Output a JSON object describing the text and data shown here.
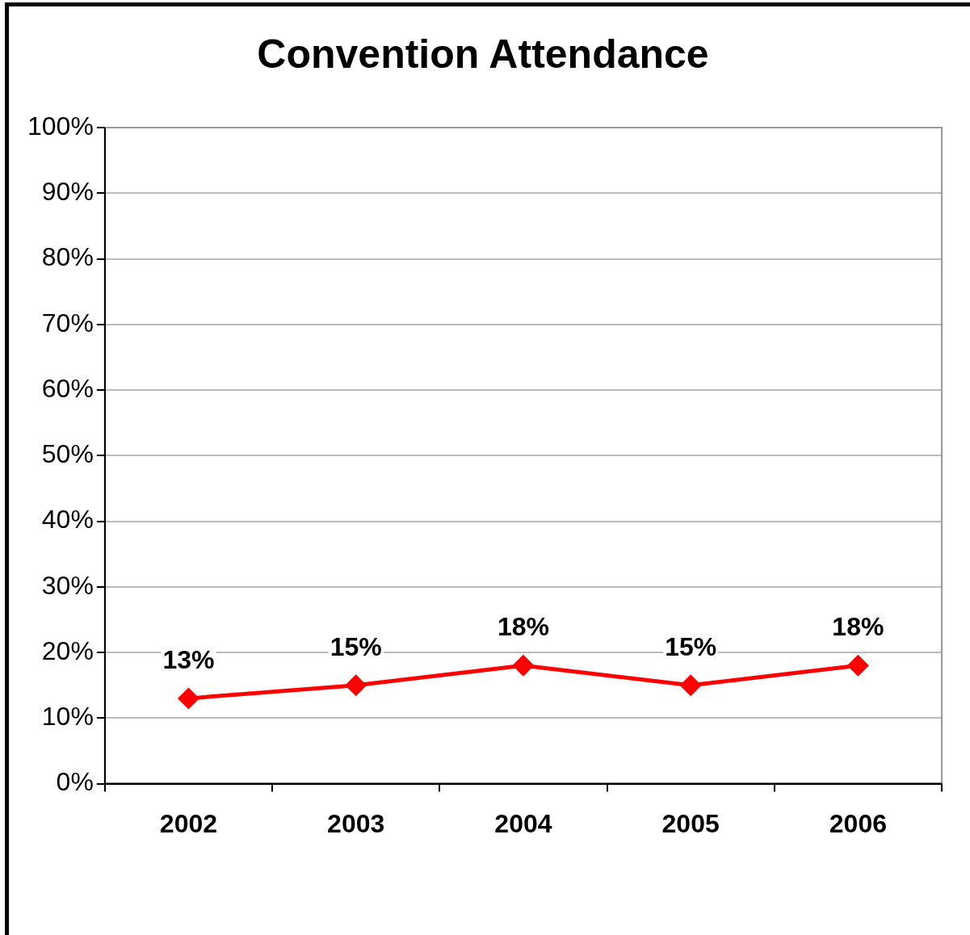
{
  "chart_data": {
    "type": "line",
    "title": "Convention Attendance",
    "categories": [
      "2002",
      "2003",
      "2004",
      "2005",
      "2006"
    ],
    "series": [
      {
        "color": "#ff0000",
        "values": [
          13,
          15,
          18,
          15,
          18
        ],
        "value_labels": [
          "13%",
          "15%",
          "18%",
          "15%",
          "18%"
        ]
      }
    ],
    "ylim": [
      0,
      100
    ],
    "yticks": [
      {
        "value": 0,
        "label": "0%"
      },
      {
        "value": 10,
        "label": "10%"
      },
      {
        "value": 20,
        "label": "20%"
      },
      {
        "value": 30,
        "label": "30%"
      },
      {
        "value": 40,
        "label": "40%"
      },
      {
        "value": 50,
        "label": "50%"
      },
      {
        "value": 60,
        "label": "60%"
      },
      {
        "value": 70,
        "label": "70%"
      },
      {
        "value": 80,
        "label": "80%"
      },
      {
        "value": 90,
        "label": "90%"
      },
      {
        "value": 100,
        "label": "100%"
      }
    ],
    "grid": "y",
    "marker": "diamond",
    "line_style": "solid"
  }
}
